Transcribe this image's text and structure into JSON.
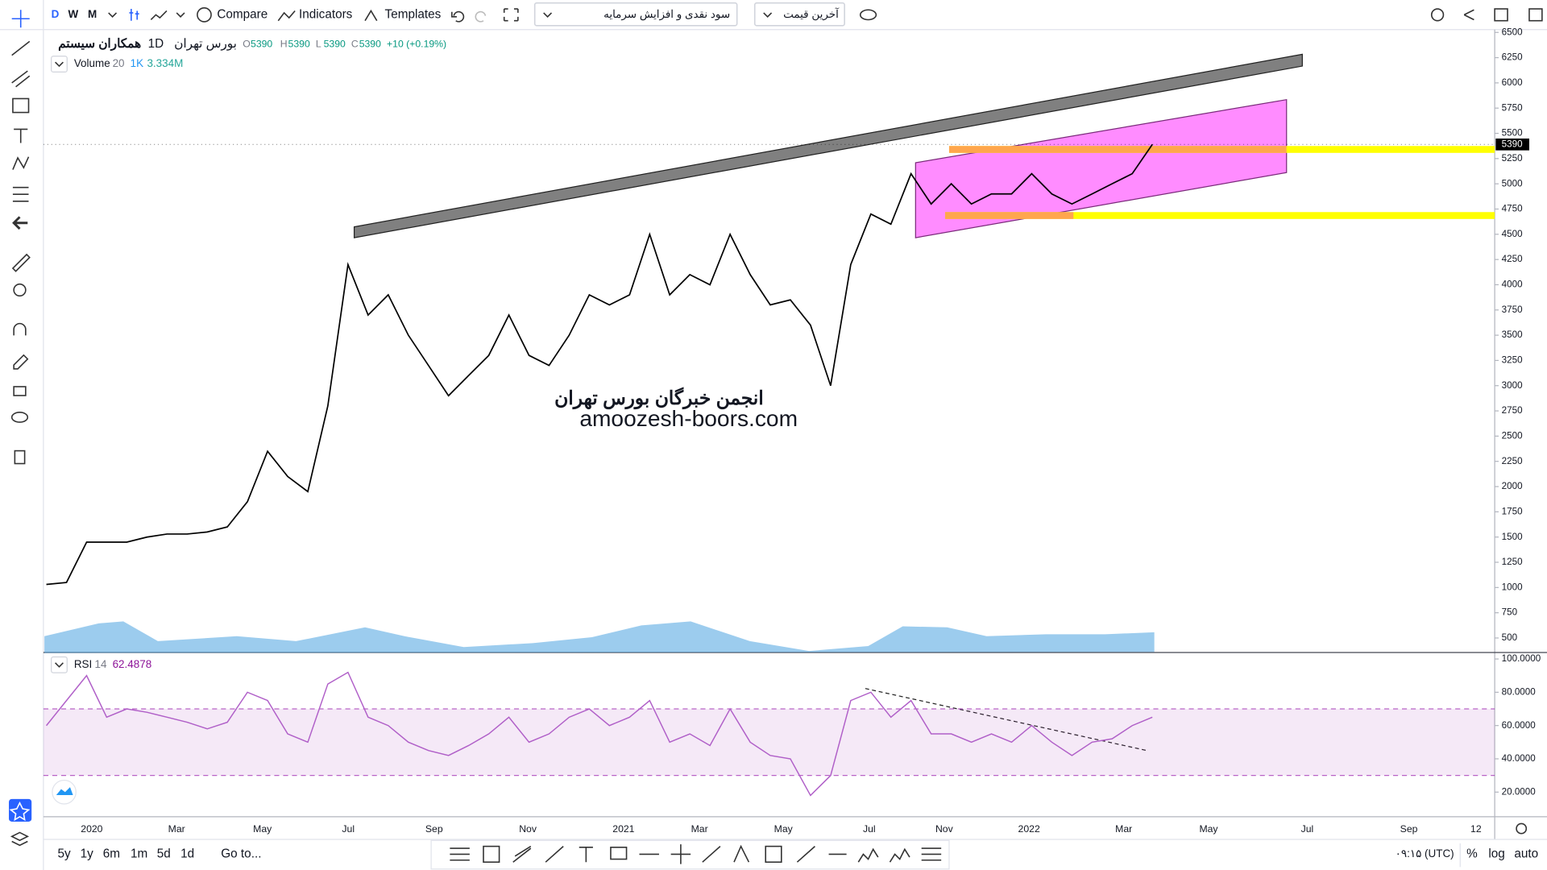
{
  "toolbar": {
    "intervals": [
      "D",
      "W",
      "M"
    ],
    "compare": "Compare",
    "indicators": "Indicators",
    "templates": "Templates",
    "dividend_select": "سود نقدی و افزایش سرمایه",
    "price_select": "آخرین قیمت"
  },
  "legend": {
    "symbol": "همکاران سیستم",
    "interval": "1D",
    "exchange": "بورس تهران",
    "ohlc": [
      {
        "label": "O",
        "value": "5390"
      },
      {
        "label": "H",
        "value": "5390"
      },
      {
        "label": "L",
        "value": "5390"
      },
      {
        "label": "C",
        "value": "5390"
      }
    ],
    "change": "+10 (+0.19%)",
    "volume": {
      "name": "Volume",
      "length": "20",
      "ma": "1K",
      "value": "3.334M"
    },
    "rsi": {
      "name": "RSI",
      "length": "14",
      "value": "62.4878"
    }
  },
  "watermark": [
    "انجمن خبرگان بورس تهران",
    "amoozesh-boors.com"
  ],
  "chart_data": [
    {
      "type": "line",
      "color": "#000000",
      "values": [
        1030,
        1050,
        1450,
        1450,
        1450,
        1500,
        1530,
        1530,
        1550,
        1600,
        1850,
        2350,
        2100,
        1950,
        2800,
        4200,
        3700,
        3900,
        3500,
        3200,
        2900,
        3100,
        3300,
        3700,
        3300,
        3200,
        3500,
        3900,
        3800,
        3900,
        4500,
        3900,
        4100,
        4000,
        4500,
        4100,
        3800,
        3850,
        3600,
        3000,
        4200,
        4700,
        4600,
        5100,
        4800,
        5000,
        4800,
        4900,
        4900,
        5100,
        4900,
        4800,
        4900,
        5000,
        5100,
        5390
      ],
      "ylim": [
        361,
        6528
      ],
      "yticks": [
        500,
        750,
        1000,
        1250,
        1500,
        1750,
        2000,
        2250,
        2500,
        2750,
        3000,
        3250,
        3500,
        3750,
        4000,
        4250,
        4500,
        4750,
        5000,
        5250,
        5500,
        5750,
        6000,
        6250,
        6500
      ],
      "last_value": 5390
    },
    {
      "type": "line",
      "color": "#b05fc8",
      "values": [
        60,
        75,
        90,
        65,
        70,
        68,
        65,
        62,
        58,
        62,
        80,
        75,
        55,
        50,
        85,
        92,
        65,
        60,
        50,
        45,
        42,
        48,
        55,
        65,
        50,
        55,
        65,
        70,
        60,
        65,
        75,
        50,
        55,
        48,
        70,
        50,
        42,
        40,
        18,
        30,
        75,
        80,
        65,
        75,
        55,
        55,
        50,
        55,
        50,
        60,
        50,
        42,
        50,
        52,
        60,
        65
      ],
      "ylim": [
        5.2,
        103.6
      ],
      "yticks": [
        {
          "value": 20,
          "label": "20.0000"
        },
        {
          "value": 40,
          "label": "40.0000"
        },
        {
          "value": 60,
          "label": "60.0000"
        },
        {
          "value": 80,
          "label": "80.0000"
        },
        {
          "value": 100,
          "label": "100.0000"
        }
      ],
      "band": [
        30,
        70
      ]
    }
  ],
  "time_axis": [
    "2020",
    "Mar",
    "May",
    "Jul",
    "Sep",
    "Nov",
    "2021",
    "Mar",
    "May",
    "Jul",
    "Nov",
    "2022",
    "Mar",
    "May",
    "Jul",
    "Sep",
    "12"
  ],
  "bottom": {
    "ranges": [
      "5y",
      "1y",
      "6m",
      "1m",
      "5d",
      "1d"
    ],
    "goto": "Go to...",
    "time": "۰۹:۱۵ (UTC)",
    "percent": "%",
    "log": "log",
    "auto": "auto"
  }
}
